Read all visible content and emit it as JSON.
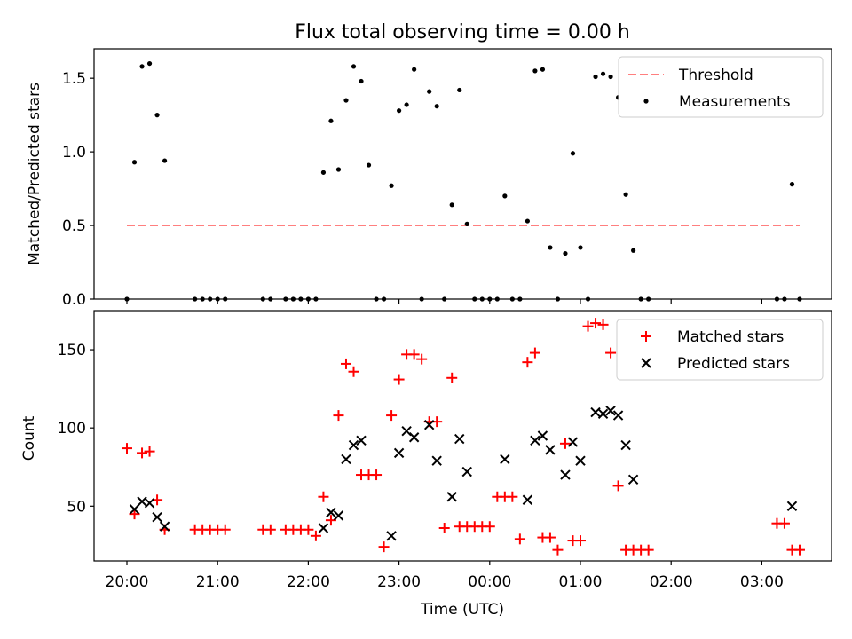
{
  "figure": {
    "title": "Flux total observing time = 0.00 h",
    "xlabel": "Time (UTC)",
    "x_tick_labels": [
      "20:00",
      "21:00",
      "22:00",
      "23:00",
      "00:00",
      "01:00",
      "02:00",
      "03:00"
    ]
  },
  "chart_data": [
    {
      "type": "scatter",
      "panel": "top",
      "ylabel": "Matched/Predicted stars",
      "ylim": [
        0,
        1.7
      ],
      "y_ticks": [
        0.0,
        0.5,
        1.0,
        1.5
      ],
      "y_tick_labels": [
        "0.0",
        "0.5",
        "1.0",
        "1.5"
      ],
      "legend_position": "top-right",
      "colors": {
        "threshold": "#ff7f7f",
        "measurements": "#000000"
      },
      "series": [
        {
          "name": "Threshold",
          "kind": "dashed-line",
          "x": [
            "20:00",
            "03:25"
          ],
          "y": [
            0.5,
            0.5
          ]
        },
        {
          "name": "Measurements",
          "kind": "dot",
          "x": [
            "20:00",
            "20:05",
            "20:10",
            "20:15",
            "20:20",
            "20:25",
            "20:45",
            "20:50",
            "20:55",
            "21:00",
            "21:05",
            "21:30",
            "21:35",
            "21:45",
            "21:50",
            "21:55",
            "22:00",
            "22:05",
            "22:10",
            "22:15",
            "22:20",
            "22:25",
            "22:30",
            "22:35",
            "22:40",
            "22:45",
            "22:50",
            "22:55",
            "23:00",
            "23:05",
            "23:10",
            "23:15",
            "23:20",
            "23:25",
            "23:30",
            "23:35",
            "23:40",
            "23:45",
            "23:50",
            "23:55",
            "00:00",
            "00:05",
            "00:10",
            "00:15",
            "00:20",
            "00:25",
            "00:30",
            "00:35",
            "00:40",
            "00:45",
            "00:50",
            "00:55",
            "01:00",
            "01:05",
            "01:10",
            "01:15",
            "01:20",
            "01:25",
            "01:30",
            "01:35",
            "01:40",
            "01:45",
            "03:10",
            "03:15",
            "03:20",
            "03:25"
          ],
          "y": [
            0.0,
            0.93,
            1.58,
            1.6,
            1.25,
            0.94,
            0.0,
            0.0,
            0.0,
            0.0,
            0.0,
            0.0,
            0.0,
            0.0,
            0.0,
            0.0,
            0.0,
            0.0,
            0.86,
            1.21,
            0.88,
            1.35,
            1.58,
            1.48,
            0.91,
            0.0,
            0.0,
            0.77,
            1.28,
            1.32,
            1.56,
            0.0,
            1.41,
            1.31,
            0.0,
            0.64,
            1.42,
            0.51,
            0.0,
            0.0,
            0.0,
            0.0,
            0.7,
            0.0,
            0.0,
            0.53,
            1.55,
            1.56,
            0.35,
            0.0,
            0.31,
            0.99,
            0.35,
            0.0,
            1.51,
            1.53,
            1.51,
            1.37,
            0.71,
            0.33,
            0.0,
            0.0,
            0.0,
            0.0,
            0.78,
            0.0
          ]
        }
      ]
    },
    {
      "type": "scatter",
      "panel": "bottom",
      "ylabel": "Count",
      "ylim": [
        15,
        175
      ],
      "y_ticks": [
        50,
        100,
        150
      ],
      "y_tick_labels": [
        "50",
        "100",
        "150"
      ],
      "legend_position": "top-right",
      "colors": {
        "matched": "#ff0000",
        "predicted": "#000000"
      },
      "series": [
        {
          "name": "Matched stars",
          "marker": "plus",
          "x": [
            "20:00",
            "20:05",
            "20:10",
            "20:15",
            "20:20",
            "20:25",
            "20:45",
            "20:50",
            "20:55",
            "21:00",
            "21:05",
            "21:30",
            "21:35",
            "21:45",
            "21:50",
            "21:55",
            "22:00",
            "22:05",
            "22:10",
            "22:15",
            "22:20",
            "22:25",
            "22:30",
            "22:35",
            "22:40",
            "22:45",
            "22:50",
            "22:55",
            "23:00",
            "23:05",
            "23:10",
            "23:15",
            "23:20",
            "23:25",
            "23:30",
            "23:35",
            "23:40",
            "23:45",
            "23:50",
            "23:55",
            "00:00",
            "00:05",
            "00:10",
            "00:15",
            "00:20",
            "00:25",
            "00:30",
            "00:35",
            "00:40",
            "00:45",
            "00:50",
            "00:55",
            "01:00",
            "01:05",
            "01:10",
            "01:15",
            "01:20",
            "01:25",
            "01:30",
            "01:35",
            "01:40",
            "01:45",
            "03:10",
            "03:15",
            "03:20",
            "03:25"
          ],
          "y": [
            87,
            45,
            84,
            85,
            54,
            35,
            35,
            35,
            35,
            35,
            35,
            35,
            35,
            35,
            35,
            35,
            35,
            31,
            56,
            41,
            108,
            141,
            136,
            70,
            70,
            70,
            24,
            108,
            131,
            147,
            147,
            144,
            104,
            104,
            36,
            132,
            37,
            37,
            37,
            37,
            37,
            56,
            56,
            56,
            29,
            142,
            148,
            30,
            30,
            22,
            90,
            28,
            28,
            165,
            167,
            166,
            148,
            63,
            22,
            22,
            22,
            22,
            39,
            39,
            22,
            22
          ]
        },
        {
          "name": "Predicted stars",
          "marker": "cross",
          "x": [
            "20:05",
            "20:10",
            "20:15",
            "20:20",
            "20:25",
            "22:10",
            "22:15",
            "22:20",
            "22:25",
            "22:30",
            "22:35",
            "22:55",
            "23:00",
            "23:05",
            "23:10",
            "23:20",
            "23:25",
            "23:35",
            "23:40",
            "23:45",
            "00:10",
            "00:25",
            "00:30",
            "00:35",
            "00:40",
            "00:50",
            "00:55",
            "01:00",
            "01:10",
            "01:15",
            "01:20",
            "01:25",
            "01:30",
            "01:35",
            "03:20"
          ],
          "x_float": [],
          "y": [
            48,
            53,
            52,
            43,
            37,
            36,
            46,
            44,
            80,
            89,
            92,
            31,
            84,
            98,
            94,
            102,
            79,
            56,
            93,
            72,
            80,
            54,
            92,
            95,
            86,
            70,
            91,
            79,
            110,
            109,
            111,
            108,
            89,
            67,
            50
          ]
        }
      ]
    }
  ]
}
